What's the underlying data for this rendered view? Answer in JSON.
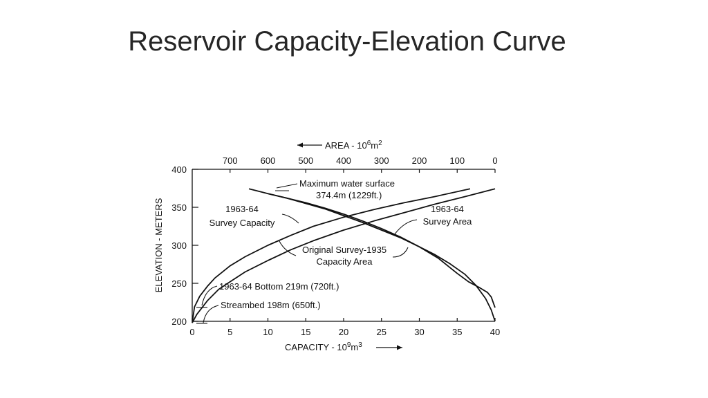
{
  "slide": {
    "title": "Reservoir Capacity-Elevation Curve"
  },
  "chart_data": {
    "type": "line",
    "title": "",
    "ylabel": "ELEVATION - METERS",
    "xlabel_bottom": "CAPACITY - 10",
    "xlabel_bottom_sup": "9",
    "xlabel_bottom_unit": "m",
    "xlabel_bottom_unit_sup": "3",
    "xlabel_top": "AREA - 10",
    "xlabel_top_sup": "6",
    "xlabel_top_unit": "m",
    "xlabel_top_unit_sup": "2",
    "x_bottom_lim": [
      0,
      40
    ],
    "x_bottom_ticks": [
      "0",
      "5",
      "10",
      "15",
      "20",
      "25",
      "30",
      "35",
      "40"
    ],
    "x_top_lim": [
      800,
      0
    ],
    "x_top_ticks": [
      "700",
      "600",
      "500",
      "400",
      "300",
      "200",
      "100",
      "0"
    ],
    "ylim": [
      200,
      400
    ],
    "y_ticks": [
      "200",
      "250",
      "300",
      "350",
      "400"
    ],
    "grid": false,
    "series": [
      {
        "axis": "capacity",
        "x": [
          0,
          0.3,
          1,
          2,
          3,
          5,
          7,
          10,
          13,
          16,
          20,
          24,
          28,
          32,
          36.7
        ],
        "y": [
          198,
          219,
          233,
          246,
          257,
          273,
          285,
          300,
          313,
          325,
          337,
          347,
          356,
          364,
          374.4
        ]
      },
      {
        "axis": "capacity",
        "x": [
          0,
          0.6,
          2,
          3.5,
          5,
          7,
          10,
          13,
          16,
          20,
          24,
          28,
          32,
          36,
          40
        ],
        "y": [
          198,
          209,
          227,
          242,
          252,
          265,
          280,
          294,
          306,
          320,
          332,
          343,
          354,
          364,
          374.4
        ]
      },
      {
        "axis": "area",
        "x": [
          0,
          10,
          20,
          40,
          70,
          100,
          150,
          200,
          250,
          300,
          350,
          400,
          450,
          500,
          550,
          600,
          650
        ],
        "y": [
          218,
          232,
          238,
          244,
          252,
          263,
          283,
          298,
          311,
          322,
          332,
          341,
          349,
          356,
          362,
          368,
          374.4
        ]
      },
      {
        "axis": "area",
        "x": [
          0,
          10,
          25,
          50,
          80,
          120,
          160,
          200,
          250,
          300,
          350,
          400,
          450,
          500,
          550,
          600
        ],
        "y": [
          200,
          215,
          230,
          247,
          262,
          276,
          288,
          298,
          310,
          320,
          330,
          339,
          348,
          355,
          362,
          368
        ]
      }
    ],
    "annotations": [
      {
        "lines": [
          "Maximum water surface",
          "374.4m (1229ft.)"
        ]
      },
      {
        "lines": [
          "1963-64",
          "Survey Capacity"
        ]
      },
      {
        "lines": [
          "1963-64",
          "Survey Area"
        ]
      },
      {
        "lines": [
          "Original Survey-1935",
          "Capacity Area"
        ]
      },
      {
        "lines": [
          "1963-64 Bottom 219m (720ft.)"
        ]
      },
      {
        "lines": [
          "Streambed 198m (650ft.)"
        ]
      }
    ]
  }
}
